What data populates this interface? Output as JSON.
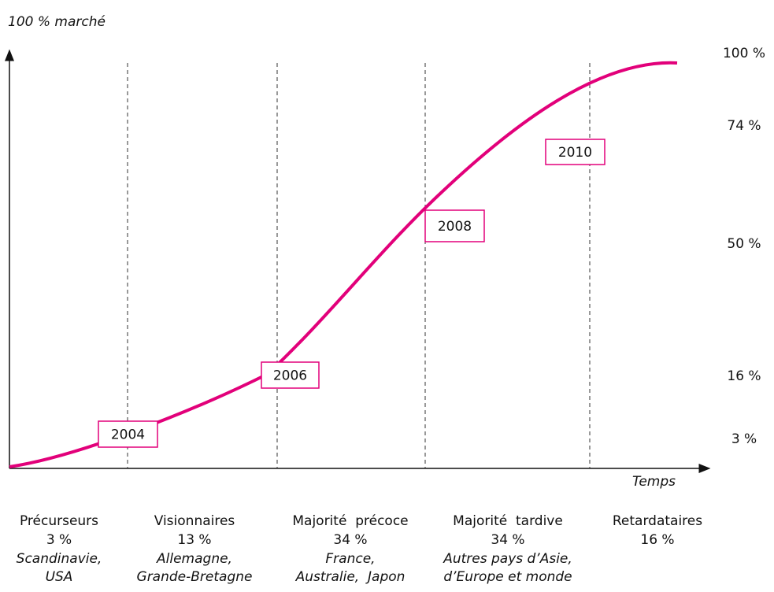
{
  "y_axis_label": "100 % marché",
  "x_axis_label": "Temps",
  "levels": [
    "100 %",
    "74 %",
    "50 %",
    "16 %",
    "3 %"
  ],
  "milestones": [
    "2004",
    "2006",
    "2008",
    "2010"
  ],
  "segments": [
    {
      "name": "Précurseurs",
      "share": "3 %",
      "countries": [
        "Scandinavie,",
        "USA"
      ]
    },
    {
      "name": "Visionnaires",
      "share": "13 %",
      "countries": [
        "Allemagne,",
        "Grande-Bretagne"
      ]
    },
    {
      "name": "Majorité  précoce",
      "share": "34 %",
      "countries": [
        "France,",
        "Australie,  Japon"
      ]
    },
    {
      "name": "Majorité  tardive",
      "share": "34 %",
      "countries": [
        "Autres pays d’Asie,",
        "d’Europe et monde"
      ]
    },
    {
      "name": "Retardataires",
      "share": "16 %",
      "countries": []
    }
  ]
}
